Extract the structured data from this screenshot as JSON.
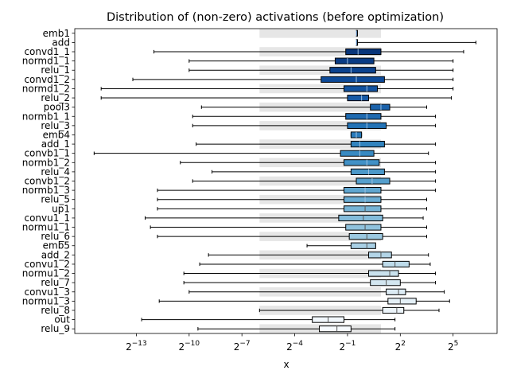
{
  "chart_data": {
    "type": "boxplot",
    "title": "Distribution of (non-zero) activations (before optimization)",
    "xlabel": "x",
    "ylabel": "",
    "x_scale": "log2",
    "xlim": [
      -16.5,
      7.5
    ],
    "x_ticks": [
      {
        "value": -13,
        "base": "2",
        "exp": "−13"
      },
      {
        "value": -10,
        "base": "2",
        "exp": "−10"
      },
      {
        "value": -7,
        "base": "2",
        "exp": "−7"
      },
      {
        "value": -4,
        "base": "2",
        "exp": "−4"
      },
      {
        "value": -1,
        "base": "2",
        "exp": "−1"
      },
      {
        "value": 2,
        "base": "2",
        "exp": "2"
      },
      {
        "value": 5,
        "base": "2",
        "exp": "5"
      }
    ],
    "shaded_band": {
      "x_start": -6,
      "x_end": 0.9,
      "description": "light gray band behind alternating rows"
    },
    "colormap": "Blues (light to dark by layer)",
    "series": [
      {
        "label": "emb1",
        "whisker_low": -0.5,
        "q1": -0.5,
        "median": -0.5,
        "q3": -0.5,
        "whisker_high": -0.5,
        "color": "#08306b"
      },
      {
        "label": "add",
        "whisker_low": -0.5,
        "q1": -0.5,
        "median": -0.5,
        "q3": -0.5,
        "whisker_high": 6.3,
        "color": "#08306b"
      },
      {
        "label": "convd1_1",
        "whisker_low": -12.0,
        "q1": -1.1,
        "median": -0.4,
        "q3": 0.9,
        "whisker_high": 5.6,
        "color": "#08357a"
      },
      {
        "label": "normd1_1",
        "whisker_low": -10.0,
        "q1": -1.7,
        "median": -1.0,
        "q3": 0.5,
        "whisker_high": 5.0,
        "color": "#0a3b84"
      },
      {
        "label": "relu_1",
        "whisker_low": -10.0,
        "q1": -2.0,
        "median": -0.8,
        "q3": 0.6,
        "whisker_high": 5.0,
        "color": "#0b428e"
      },
      {
        "label": "convd1_2",
        "whisker_low": -13.2,
        "q1": -2.5,
        "median": -0.5,
        "q3": 1.1,
        "whisker_high": 5.0,
        "color": "#0d4a98"
      },
      {
        "label": "normd1_2",
        "whisker_low": -15.0,
        "q1": -1.2,
        "median": 0.1,
        "q3": 0.7,
        "whisker_high": 5.0,
        "color": "#12529f"
      },
      {
        "label": "relu_2",
        "whisker_low": -15.0,
        "q1": -1.0,
        "median": -0.2,
        "q3": 0.2,
        "whisker_high": 4.9,
        "color": "#1659a5"
      },
      {
        "label": "pool3",
        "whisker_low": -9.3,
        "q1": 0.3,
        "median": 0.9,
        "q3": 1.4,
        "whisker_high": 3.5,
        "color": "#1b62ab"
      },
      {
        "label": "normb1_1",
        "whisker_low": -9.8,
        "q1": -1.1,
        "median": 0.1,
        "q3": 0.9,
        "whisker_high": 4.0,
        "color": "#1f6ab0"
      },
      {
        "label": "relu_3",
        "whisker_low": -9.8,
        "q1": -1.0,
        "median": 0.1,
        "q3": 1.2,
        "whisker_high": 4.0,
        "color": "#2373b6"
      },
      {
        "label": "emb4",
        "whisker_low": -0.8,
        "q1": -0.8,
        "median": -0.5,
        "q3": -0.2,
        "whisker_high": -0.2,
        "color": "#297bbb"
      },
      {
        "label": "add_1",
        "whisker_low": -9.6,
        "q1": -0.8,
        "median": -0.3,
        "q3": 1.1,
        "whisker_high": 4.0,
        "color": "#3183be"
      },
      {
        "label": "convb1_1",
        "whisker_low": -15.4,
        "q1": -1.4,
        "median": -0.3,
        "q3": 0.5,
        "whisker_high": 3.6,
        "color": "#388ac2"
      },
      {
        "label": "normb1_2",
        "whisker_low": -10.5,
        "q1": -1.2,
        "median": 0.1,
        "q3": 0.8,
        "whisker_high": 4.0,
        "color": "#4191c6"
      },
      {
        "label": "relu_4",
        "whisker_low": -8.7,
        "q1": -0.8,
        "median": 0.2,
        "q3": 1.1,
        "whisker_high": 4.0,
        "color": "#4b98c9"
      },
      {
        "label": "convb1_2",
        "whisker_low": -9.8,
        "q1": -0.5,
        "median": 0.4,
        "q3": 1.4,
        "whisker_high": 4.0,
        "color": "#559fcd"
      },
      {
        "label": "normb1_3",
        "whisker_low": -11.8,
        "q1": -1.2,
        "median": 0.0,
        "q3": 0.9,
        "whisker_high": 4.0,
        "color": "#60a6d0"
      },
      {
        "label": "relu_5",
        "whisker_low": -11.8,
        "q1": -1.2,
        "median": 0.0,
        "q3": 0.9,
        "whisker_high": 3.5,
        "color": "#6badd4"
      },
      {
        "label": "up1",
        "whisker_low": -11.8,
        "q1": -1.2,
        "median": 0.0,
        "q3": 0.9,
        "whisker_high": 3.5,
        "color": "#77b4d6"
      },
      {
        "label": "convu1_1",
        "whisker_low": -12.5,
        "q1": -1.5,
        "median": -0.1,
        "q3": 1.0,
        "whisker_high": 3.3,
        "color": "#83bbda"
      },
      {
        "label": "normu1_1",
        "whisker_low": -12.2,
        "q1": -1.1,
        "median": 0.0,
        "q3": 0.9,
        "whisker_high": 3.5,
        "color": "#90c2dd"
      },
      {
        "label": "relu_6",
        "whisker_low": -11.8,
        "q1": -0.9,
        "median": 0.1,
        "q3": 1.0,
        "whisker_high": 3.5,
        "color": "#9cc9e1"
      },
      {
        "label": "emb5",
        "whisker_low": -3.3,
        "q1": -0.8,
        "median": 0.1,
        "q3": 0.6,
        "whisker_high": 0.6,
        "color": "#a8cfe4"
      },
      {
        "label": "add_2",
        "whisker_low": -8.9,
        "q1": 0.2,
        "median": 0.9,
        "q3": 1.5,
        "whisker_high": 3.6,
        "color": "#b3d5e7"
      },
      {
        "label": "convu1_2",
        "whisker_low": -9.4,
        "q1": 1.0,
        "median": 1.7,
        "q3": 2.5,
        "whisker_high": 3.7,
        "color": "#bedbea"
      },
      {
        "label": "normu1_2",
        "whisker_low": -10.3,
        "q1": 0.2,
        "median": 1.4,
        "q3": 1.9,
        "whisker_high": 4.0,
        "color": "#c9e1ed"
      },
      {
        "label": "relu_7",
        "whisker_low": -10.3,
        "q1": 0.3,
        "median": 1.2,
        "q3": 2.0,
        "whisker_high": 4.0,
        "color": "#d3e6f0"
      },
      {
        "label": "convu1_3",
        "whisker_low": -10.0,
        "q1": 1.2,
        "median": 1.9,
        "q3": 2.3,
        "whisker_high": 4.5,
        "color": "#dcebf4"
      },
      {
        "label": "normu1_3",
        "whisker_low": -11.7,
        "q1": 1.3,
        "median": 2.0,
        "q3": 2.9,
        "whisker_high": 4.8,
        "color": "#e4f0f7"
      },
      {
        "label": "relu_8",
        "whisker_low": -6.0,
        "q1": 1.0,
        "median": 1.8,
        "q3": 2.2,
        "whisker_high": 4.2,
        "color": "#ecf4fa"
      },
      {
        "label": "out",
        "whisker_low": -12.7,
        "q1": -3.0,
        "median": -2.1,
        "q3": -1.2,
        "whisker_high": 1.7,
        "color": "#f1f7fc"
      },
      {
        "label": "relu_9",
        "whisker_low": -9.5,
        "q1": -2.6,
        "median": -1.6,
        "q3": -0.8,
        "whisker_high": 1.7,
        "color": "#f7fbff"
      }
    ]
  }
}
